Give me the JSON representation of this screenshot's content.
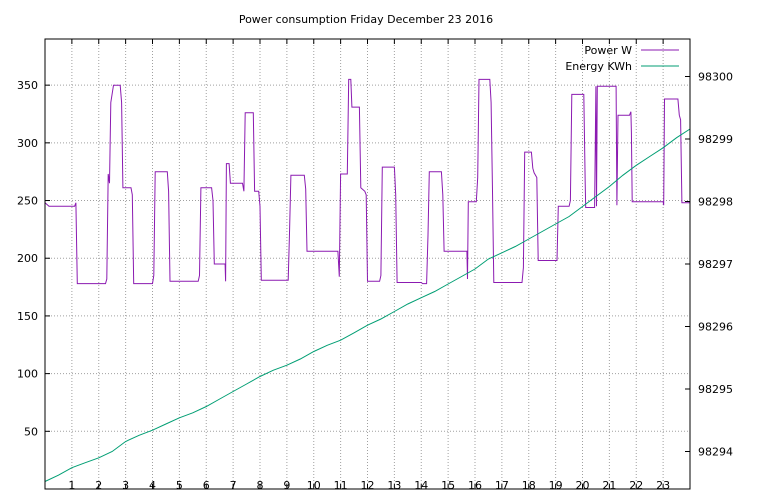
{
  "chart_data": {
    "type": "line",
    "title": "Power consumption Friday December 23 2016",
    "xlim": [
      0,
      24
    ],
    "ylim_left": [
      0,
      390
    ],
    "ylim_right": [
      98293.4,
      98300.6
    ],
    "grid": true,
    "legend_position": "top-right",
    "x_ticks": [
      "1",
      "2",
      "3",
      "4",
      "5",
      "6",
      "7",
      "8",
      "9",
      "10",
      "11",
      "12",
      "13",
      "14",
      "15",
      "16",
      "17",
      "18",
      "19",
      "20",
      "21",
      "22",
      "23"
    ],
    "y_ticks_left": [
      "50",
      "100",
      "150",
      "200",
      "250",
      "300",
      "350"
    ],
    "y_ticks_right": [
      "98294",
      "98295",
      "98296",
      "98297",
      "98298",
      "98299",
      "98300"
    ],
    "series": [
      {
        "name": "Power W",
        "axis": "left",
        "color": "#8b1ab1",
        "points": [
          [
            0.0,
            248
          ],
          [
            0.15,
            245
          ],
          [
            1.1,
            245
          ],
          [
            1.15,
            248
          ],
          [
            1.2,
            178
          ],
          [
            2.25,
            178
          ],
          [
            2.3,
            182
          ],
          [
            2.35,
            273
          ],
          [
            2.4,
            265
          ],
          [
            2.45,
            335
          ],
          [
            2.55,
            350
          ],
          [
            2.8,
            350
          ],
          [
            2.85,
            335
          ],
          [
            2.9,
            261
          ],
          [
            3.2,
            261
          ],
          [
            3.25,
            255
          ],
          [
            3.3,
            178
          ],
          [
            4.0,
            178
          ],
          [
            4.05,
            185
          ],
          [
            4.1,
            275
          ],
          [
            4.55,
            275
          ],
          [
            4.6,
            258
          ],
          [
            4.65,
            180
          ],
          [
            5.7,
            180
          ],
          [
            5.75,
            185
          ],
          [
            5.8,
            261
          ],
          [
            6.2,
            261
          ],
          [
            6.25,
            250
          ],
          [
            6.3,
            195
          ],
          [
            6.7,
            195
          ],
          [
            6.72,
            180
          ],
          [
            6.75,
            282
          ],
          [
            6.85,
            282
          ],
          [
            6.9,
            265
          ],
          [
            7.35,
            265
          ],
          [
            7.4,
            258
          ],
          [
            7.45,
            326
          ],
          [
            7.75,
            326
          ],
          [
            7.8,
            258
          ],
          [
            7.95,
            258
          ],
          [
            8.0,
            245
          ],
          [
            8.05,
            181
          ],
          [
            9.05,
            181
          ],
          [
            9.1,
            225
          ],
          [
            9.15,
            272
          ],
          [
            9.65,
            272
          ],
          [
            9.7,
            260
          ],
          [
            9.75,
            206
          ],
          [
            10.9,
            206
          ],
          [
            10.95,
            184
          ],
          [
            11.0,
            273
          ],
          [
            11.25,
            273
          ],
          [
            11.3,
            355
          ],
          [
            11.38,
            355
          ],
          [
            11.42,
            331
          ],
          [
            11.7,
            331
          ],
          [
            11.75,
            261
          ],
          [
            11.9,
            258
          ],
          [
            11.95,
            255
          ],
          [
            12.0,
            180
          ],
          [
            12.45,
            180
          ],
          [
            12.5,
            185
          ],
          [
            12.55,
            279
          ],
          [
            13.0,
            279
          ],
          [
            13.05,
            255
          ],
          [
            13.1,
            179
          ],
          [
            14.0,
            179
          ],
          [
            14.05,
            178
          ],
          [
            14.2,
            178
          ],
          [
            14.25,
            220
          ],
          [
            14.3,
            275
          ],
          [
            14.75,
            275
          ],
          [
            14.8,
            255
          ],
          [
            14.85,
            206
          ],
          [
            15.7,
            206
          ],
          [
            15.72,
            182
          ],
          [
            15.75,
            249
          ],
          [
            16.05,
            249
          ],
          [
            16.1,
            270
          ],
          [
            16.15,
            355
          ],
          [
            16.55,
            355
          ],
          [
            16.6,
            335
          ],
          [
            16.65,
            258
          ],
          [
            16.7,
            179
          ],
          [
            17.75,
            179
          ],
          [
            17.8,
            192
          ],
          [
            17.85,
            292
          ],
          [
            18.1,
            292
          ],
          [
            18.15,
            278
          ],
          [
            18.2,
            274
          ],
          [
            18.3,
            270
          ],
          [
            18.35,
            198
          ],
          [
            19.05,
            198
          ],
          [
            19.1,
            245
          ],
          [
            19.5,
            245
          ],
          [
            19.55,
            250
          ],
          [
            19.6,
            342
          ],
          [
            20.05,
            342
          ],
          [
            20.1,
            265
          ],
          [
            20.12,
            244
          ],
          [
            20.45,
            244
          ],
          [
            20.5,
            349
          ],
          [
            20.52,
            245
          ],
          [
            20.55,
            349
          ],
          [
            21.25,
            349
          ],
          [
            21.28,
            246
          ],
          [
            21.32,
            324
          ],
          [
            21.75,
            324
          ],
          [
            21.8,
            327
          ],
          [
            21.82,
            309
          ],
          [
            21.85,
            249
          ],
          [
            23.0,
            249
          ],
          [
            23.02,
            246
          ],
          [
            23.05,
            338
          ],
          [
            23.55,
            338
          ],
          [
            23.6,
            324
          ],
          [
            23.65,
            320
          ],
          [
            23.7,
            248
          ],
          [
            24.0,
            248
          ]
        ]
      },
      {
        "name": "Energy KWh",
        "axis": "right",
        "color": "#009e73",
        "points": [
          [
            0.0,
            98293.52
          ],
          [
            0.5,
            98293.62
          ],
          [
            1.0,
            98293.74
          ],
          [
            1.5,
            98293.82
          ],
          [
            2.0,
            98293.9
          ],
          [
            2.5,
            98294.0
          ],
          [
            3.0,
            98294.16
          ],
          [
            3.5,
            98294.26
          ],
          [
            4.0,
            98294.34
          ],
          [
            4.5,
            98294.44
          ],
          [
            5.0,
            98294.54
          ],
          [
            5.5,
            98294.62
          ],
          [
            6.0,
            98294.72
          ],
          [
            6.5,
            98294.84
          ],
          [
            7.0,
            98294.96
          ],
          [
            7.5,
            98295.08
          ],
          [
            8.0,
            98295.2
          ],
          [
            8.5,
            98295.3
          ],
          [
            9.0,
            98295.38
          ],
          [
            9.5,
            98295.48
          ],
          [
            10.0,
            98295.6
          ],
          [
            10.5,
            98295.7
          ],
          [
            11.0,
            98295.78
          ],
          [
            11.5,
            98295.9
          ],
          [
            12.0,
            98296.02
          ],
          [
            12.5,
            98296.12
          ],
          [
            13.0,
            98296.24
          ],
          [
            13.5,
            98296.36
          ],
          [
            14.0,
            98296.46
          ],
          [
            14.5,
            98296.56
          ],
          [
            15.0,
            98296.68
          ],
          [
            15.5,
            98296.8
          ],
          [
            16.0,
            98296.92
          ],
          [
            16.5,
            98297.08
          ],
          [
            17.0,
            98297.18
          ],
          [
            17.5,
            98297.28
          ],
          [
            18.0,
            98297.4
          ],
          [
            18.5,
            98297.52
          ],
          [
            19.0,
            98297.64
          ],
          [
            19.5,
            98297.76
          ],
          [
            20.0,
            98297.92
          ],
          [
            20.5,
            98298.08
          ],
          [
            21.0,
            98298.24
          ],
          [
            21.5,
            98298.42
          ],
          [
            22.0,
            98298.58
          ],
          [
            22.5,
            98298.72
          ],
          [
            23.0,
            98298.86
          ],
          [
            23.5,
            98299.02
          ],
          [
            24.0,
            98299.16
          ]
        ]
      }
    ]
  }
}
